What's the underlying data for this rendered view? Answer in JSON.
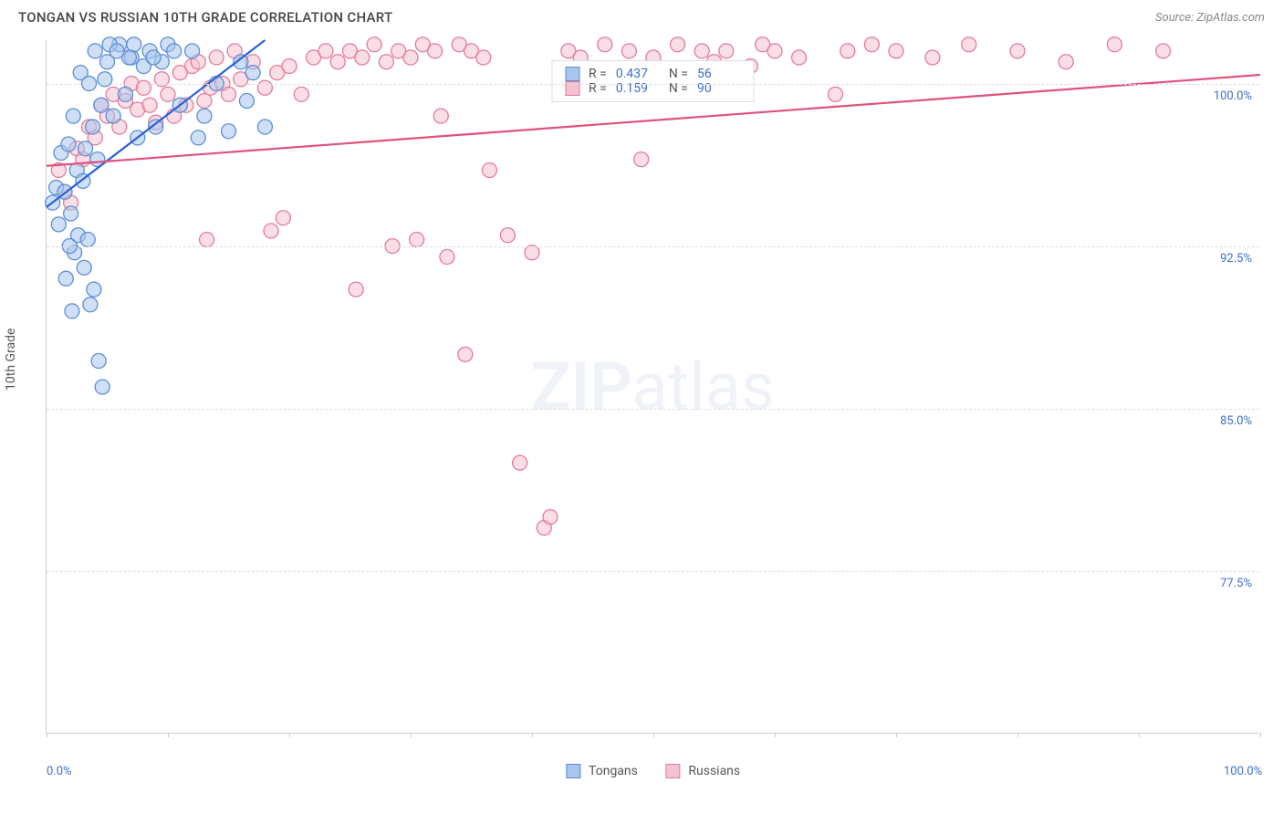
{
  "title": "TONGAN VS RUSSIAN 10TH GRADE CORRELATION CHART",
  "source": "Source: ZipAtlas.com",
  "watermark": {
    "bold": "ZIP",
    "light": "atlas"
  },
  "y_axis_label": "10th Grade",
  "chart": {
    "type": "scatter",
    "xlim": [
      0,
      100
    ],
    "ylim": [
      70,
      102
    ],
    "x_ticks": [
      0,
      10,
      20,
      30,
      40,
      50,
      60,
      70,
      80,
      90,
      100
    ],
    "x_tick_labels": {
      "0": "0.0%",
      "100": "100.0%"
    },
    "y_gridlines": [
      77.5,
      85.0,
      92.5,
      100.0
    ],
    "y_tick_labels": [
      "77.5%",
      "85.0%",
      "92.5%",
      "100.0%"
    ],
    "background_color": "#ffffff",
    "grid_color": "#dddddd",
    "axis_color": "#cccccc",
    "marker_radius": 8,
    "marker_opacity": 0.55,
    "series": [
      {
        "name": "Tongans",
        "color_fill": "#a8c5ed",
        "color_stroke": "#5a8ed6",
        "line_color": "#2962d9",
        "R": "0.437",
        "N": "56",
        "regression": {
          "x1": 0,
          "y1": 94.3,
          "x2": 18,
          "y2": 102
        },
        "points": [
          [
            0.5,
            94.5
          ],
          [
            0.8,
            95.2
          ],
          [
            1.0,
            93.5
          ],
          [
            1.2,
            96.8
          ],
          [
            1.5,
            95.0
          ],
          [
            1.8,
            97.2
          ],
          [
            2.0,
            94.0
          ],
          [
            2.2,
            98.5
          ],
          [
            2.5,
            96.0
          ],
          [
            2.8,
            100.5
          ],
          [
            3.0,
            95.5
          ],
          [
            3.2,
            97.0
          ],
          [
            3.5,
            100.0
          ],
          [
            3.8,
            98.0
          ],
          [
            4.0,
            101.5
          ],
          [
            4.2,
            96.5
          ],
          [
            4.5,
            99.0
          ],
          [
            4.8,
            100.2
          ],
          [
            5.0,
            101.0
          ],
          [
            5.5,
            98.5
          ],
          [
            6.0,
            101.8
          ],
          [
            6.5,
            99.5
          ],
          [
            7.0,
            101.2
          ],
          [
            7.5,
            97.5
          ],
          [
            8.0,
            100.8
          ],
          [
            8.5,
            101.5
          ],
          [
            9.0,
            98.0
          ],
          [
            9.5,
            101.0
          ],
          [
            10.0,
            101.8
          ],
          [
            11.0,
            99.0
          ],
          [
            12.0,
            101.5
          ],
          [
            12.5,
            97.5
          ],
          [
            13.0,
            98.5
          ],
          [
            14.0,
            100.0
          ],
          [
            15.0,
            97.8
          ],
          [
            16.0,
            101.0
          ],
          [
            16.5,
            99.2
          ],
          [
            17.0,
            100.5
          ],
          [
            18.0,
            98.0
          ],
          [
            5.2,
            101.8
          ],
          [
            6.8,
            101.2
          ],
          [
            2.3,
            92.2
          ],
          [
            2.6,
            93.0
          ],
          [
            3.1,
            91.5
          ],
          [
            3.4,
            92.8
          ],
          [
            1.6,
            91.0
          ],
          [
            1.9,
            92.5
          ],
          [
            3.6,
            89.8
          ],
          [
            3.9,
            90.5
          ],
          [
            4.3,
            87.2
          ],
          [
            4.6,
            86.0
          ],
          [
            2.1,
            89.5
          ],
          [
            5.8,
            101.5
          ],
          [
            7.2,
            101.8
          ],
          [
            8.8,
            101.2
          ],
          [
            10.5,
            101.5
          ]
        ]
      },
      {
        "name": "Russians",
        "color_fill": "#f5c2cf",
        "color_stroke": "#e37a99",
        "line_color": "#e0527a",
        "R": "0.159",
        "N": "90",
        "regression": {
          "x1": 0,
          "y1": 96.2,
          "x2": 100,
          "y2": 100.4
        },
        "points": [
          [
            1.0,
            96.0
          ],
          [
            1.5,
            95.0
          ],
          [
            2.0,
            94.5
          ],
          [
            2.5,
            97.0
          ],
          [
            3.0,
            96.5
          ],
          [
            3.5,
            98.0
          ],
          [
            4.0,
            97.5
          ],
          [
            4.5,
            99.0
          ],
          [
            5.0,
            98.5
          ],
          [
            5.5,
            99.5
          ],
          [
            6.0,
            98.0
          ],
          [
            6.5,
            99.2
          ],
          [
            7.0,
            100.0
          ],
          [
            7.5,
            98.8
          ],
          [
            8.0,
            99.8
          ],
          [
            8.5,
            99.0
          ],
          [
            9.0,
            98.2
          ],
          [
            9.5,
            100.2
          ],
          [
            10.0,
            99.5
          ],
          [
            10.5,
            98.5
          ],
          [
            11.0,
            100.5
          ],
          [
            11.5,
            99.0
          ],
          [
            12.0,
            100.8
          ],
          [
            12.5,
            101.0
          ],
          [
            13.0,
            99.2
          ],
          [
            13.5,
            99.8
          ],
          [
            14.0,
            101.2
          ],
          [
            14.5,
            100.0
          ],
          [
            15.0,
            99.5
          ],
          [
            15.5,
            101.5
          ],
          [
            16.0,
            100.2
          ],
          [
            17.0,
            101.0
          ],
          [
            18.0,
            99.8
          ],
          [
            19.0,
            100.5
          ],
          [
            19.5,
            93.8
          ],
          [
            20.0,
            100.8
          ],
          [
            21.0,
            99.5
          ],
          [
            22.0,
            101.2
          ],
          [
            23.0,
            101.5
          ],
          [
            24.0,
            101.0
          ],
          [
            25.0,
            101.5
          ],
          [
            25.5,
            90.5
          ],
          [
            26.0,
            101.2
          ],
          [
            27.0,
            101.8
          ],
          [
            28.0,
            101.0
          ],
          [
            28.5,
            92.5
          ],
          [
            29.0,
            101.5
          ],
          [
            30.0,
            101.2
          ],
          [
            30.5,
            92.8
          ],
          [
            31.0,
            101.8
          ],
          [
            32.0,
            101.5
          ],
          [
            32.5,
            98.5
          ],
          [
            33.0,
            92.0
          ],
          [
            34.0,
            101.8
          ],
          [
            34.5,
            87.5
          ],
          [
            35.0,
            101.5
          ],
          [
            36.0,
            101.2
          ],
          [
            36.5,
            96.0
          ],
          [
            38.0,
            93.0
          ],
          [
            39.0,
            82.5
          ],
          [
            40.0,
            92.2
          ],
          [
            41.0,
            79.5
          ],
          [
            41.5,
            80.0
          ],
          [
            43.0,
            101.5
          ],
          [
            44.0,
            101.2
          ],
          [
            46.0,
            101.8
          ],
          [
            48.0,
            101.5
          ],
          [
            49.0,
            96.5
          ],
          [
            50.0,
            101.2
          ],
          [
            51.0,
            100.5
          ],
          [
            52.0,
            101.8
          ],
          [
            54.0,
            101.5
          ],
          [
            55.0,
            101.0
          ],
          [
            56.0,
            101.5
          ],
          [
            58.0,
            100.8
          ],
          [
            59.0,
            101.8
          ],
          [
            60.0,
            101.5
          ],
          [
            62.0,
            101.2
          ],
          [
            65.0,
            99.5
          ],
          [
            66.0,
            101.5
          ],
          [
            68.0,
            101.8
          ],
          [
            70.0,
            101.5
          ],
          [
            73.0,
            101.2
          ],
          [
            76.0,
            101.8
          ],
          [
            80.0,
            101.5
          ],
          [
            84.0,
            101.0
          ],
          [
            88.0,
            101.8
          ],
          [
            92.0,
            101.5
          ],
          [
            13.2,
            92.8
          ],
          [
            18.5,
            93.2
          ]
        ]
      }
    ]
  },
  "legend": {
    "items": [
      {
        "label": "Tongans",
        "fill": "#a8c5ed",
        "stroke": "#5a8ed6"
      },
      {
        "label": "Russians",
        "fill": "#f5c2cf",
        "stroke": "#e37a99"
      }
    ]
  }
}
